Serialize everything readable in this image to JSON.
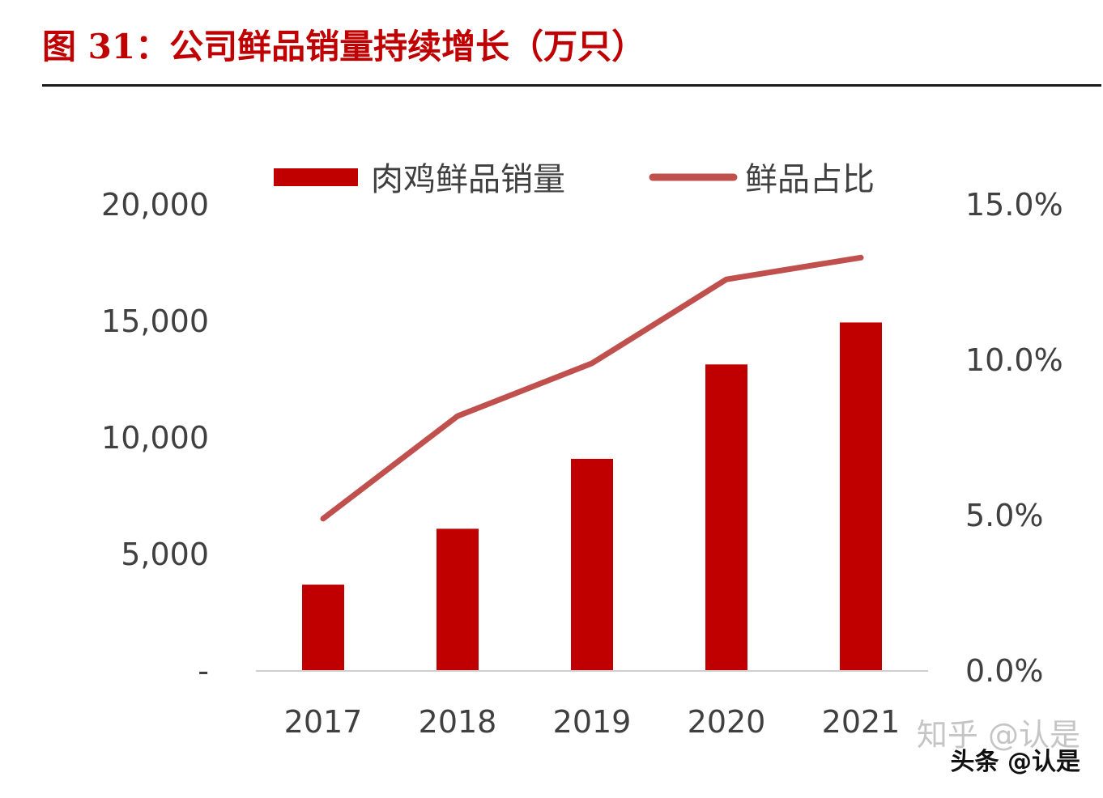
{
  "figure": {
    "title": "图 31：公司鲜品销量持续增长（万只）"
  },
  "watermark": {
    "back": "知乎 @认是",
    "front": "头条 @认是"
  },
  "chart_data": {
    "type": "bar",
    "categories": [
      "2017",
      "2018",
      "2019",
      "2020",
      "2021"
    ],
    "series": [
      {
        "name": "肉鸡鲜品销量",
        "type": "bar",
        "axis": "left",
        "color": "#c00000",
        "values": [
          3700,
          6100,
          9100,
          13150,
          14950
        ]
      },
      {
        "name": "鲜品占比",
        "type": "line",
        "axis": "right",
        "color": "#c0504d",
        "values": [
          0.049,
          0.082,
          0.099,
          0.126,
          0.133
        ]
      }
    ],
    "y_left": {
      "ylim": [
        0,
        20000
      ],
      "ticks": [
        0,
        5000,
        10000,
        15000,
        20000
      ],
      "tick_labels": [
        "-",
        "5,000",
        "10,000",
        "15,000",
        "20,000"
      ]
    },
    "y_right": {
      "ylim": [
        0,
        0.15
      ],
      "ticks": [
        0,
        0.05,
        0.1,
        0.15
      ],
      "tick_labels": [
        "0.0%",
        "5.0%",
        "10.0%",
        "15.0%"
      ]
    },
    "legend": {
      "position": "top",
      "labels": [
        "肉鸡鲜品销量",
        "鲜品占比"
      ]
    },
    "grid": false,
    "colors": {
      "bar": "#c00000",
      "line": "#c0504d",
      "axis": "#cfcfcf",
      "tick_text": "#404040"
    }
  }
}
